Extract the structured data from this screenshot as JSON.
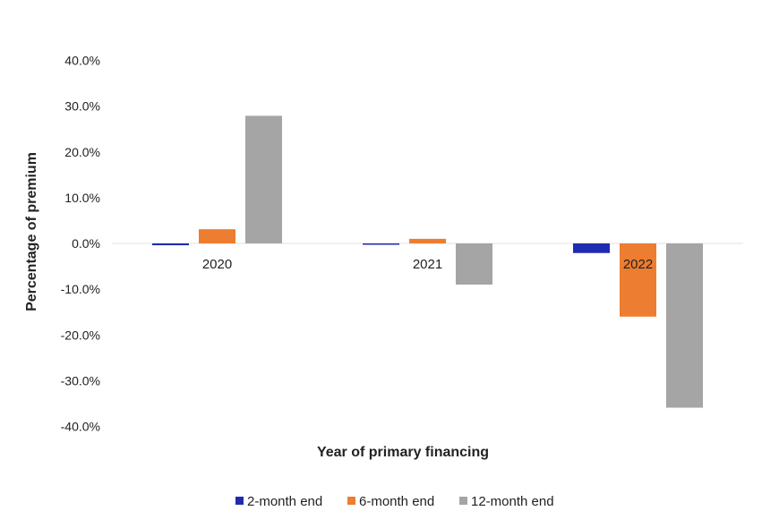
{
  "chart_data": {
    "type": "bar",
    "title": "",
    "xlabel": "Year of primary financing",
    "ylabel": "Percentage of premium",
    "categories": [
      "2020",
      "2021",
      "2022"
    ],
    "ylim": [
      -40,
      40
    ],
    "yticks": [
      "40.0%",
      "30.0%",
      "20.0%",
      "10.0%",
      "0.0%",
      "-10.0%",
      "-20.0%",
      "-30.0%",
      "-40.0%"
    ],
    "ytick_values": [
      40,
      30,
      20,
      10,
      0,
      -10,
      -20,
      -30,
      -40
    ],
    "legend_position": "bottom",
    "series": [
      {
        "name": "2-month end",
        "color": "#1f2bb0",
        "values": [
          -0.4,
          -0.1,
          -2.1
        ]
      },
      {
        "name": "6-month end",
        "color": "#ed7d31",
        "values": [
          3.1,
          1.0,
          -16.0
        ]
      },
      {
        "name": "12-month end",
        "color": "#a5a5a5",
        "values": [
          27.9,
          -9.0,
          -35.9
        ]
      }
    ]
  }
}
